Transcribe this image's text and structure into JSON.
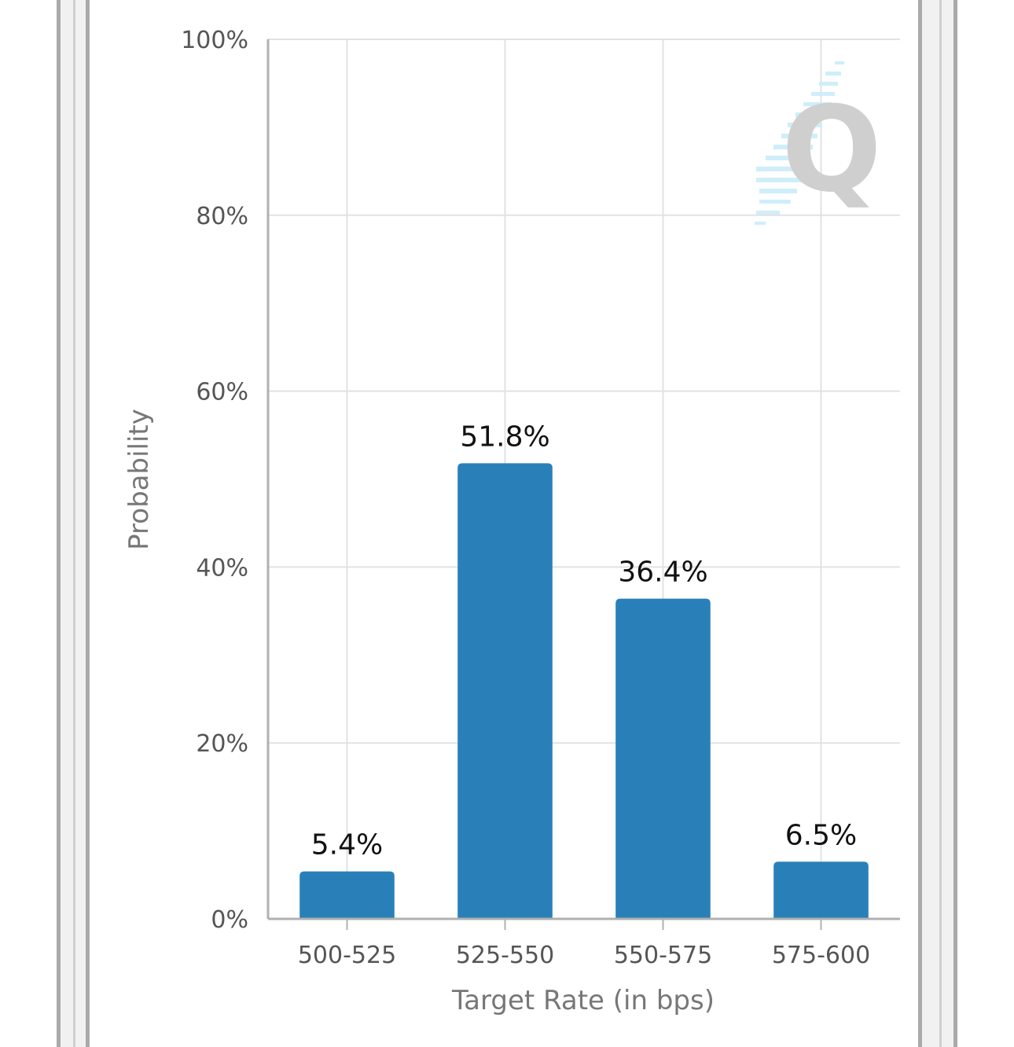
{
  "chart_data": {
    "type": "bar",
    "categories": [
      "500-525",
      "525-550",
      "550-575",
      "575-600"
    ],
    "values": [
      5.4,
      51.8,
      36.4,
      6.5
    ],
    "data_labels": [
      "5.4%",
      "51.8%",
      "36.4%",
      "6.5%"
    ],
    "xlabel": "Target Rate (in bps)",
    "ylabel": "Probability",
    "ylim": [
      0,
      100
    ],
    "y_ticks": [
      0,
      20,
      40,
      60,
      80,
      100
    ],
    "y_tick_labels": [
      "0%",
      "20%",
      "40%",
      "60%",
      "80%",
      "100%"
    ],
    "grid": true,
    "bar_color": "#2980b9",
    "watermark": "Q"
  }
}
